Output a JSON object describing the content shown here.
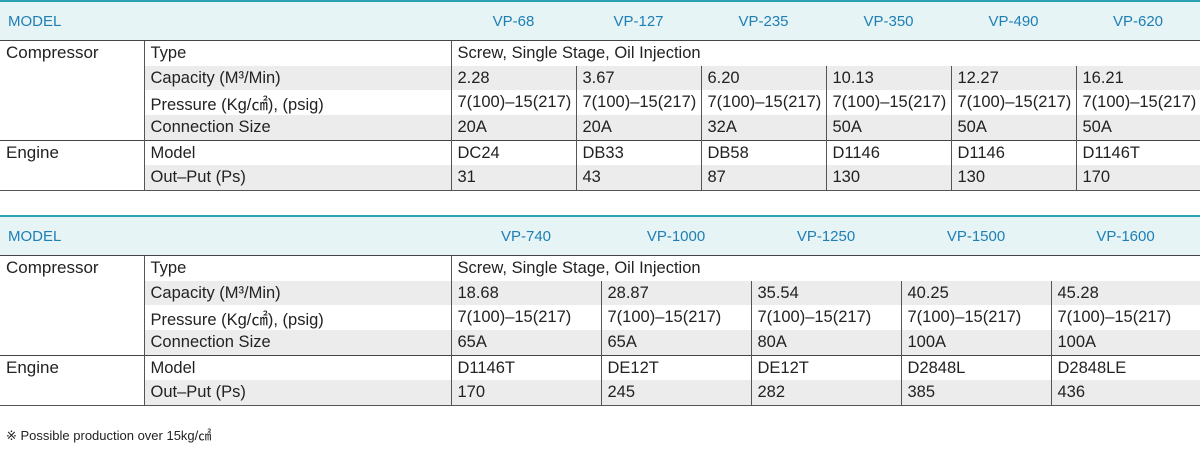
{
  "table1": {
    "model_label": "MODEL",
    "models": [
      "VP-68",
      "VP-127",
      "VP-235",
      "VP-350",
      "VP-490",
      "VP-620"
    ],
    "compressor_label": "Compressor",
    "engine_label": "Engine",
    "type_label": "Type",
    "type_value": "Screw, Single Stage, Oil Injection",
    "capacity_label": "Capacity (M³/Min)",
    "capacity": [
      "2.28",
      "3.67",
      "6.20",
      "10.13",
      "12.27",
      "16.21"
    ],
    "pressure_label": "Pressure (Kg/㎠), (psig)",
    "pressure": [
      "7(100)–15(217)",
      "7(100)–15(217)",
      "7(100)–15(217)",
      "7(100)–15(217)",
      "7(100)–15(217)",
      "7(100)–15(217)"
    ],
    "connection_label": "Connection Size",
    "connection": [
      "20A",
      "20A",
      "32A",
      "50A",
      "50A",
      "50A"
    ],
    "engine_model_label": "Model",
    "engine_model": [
      "DC24",
      "DB33",
      "DB58",
      "D1146",
      "D1146",
      "D1146T"
    ],
    "output_label": "Out–Put (Ps)",
    "output": [
      "31",
      "43",
      "87",
      "130",
      "130",
      "170"
    ]
  },
  "table2": {
    "model_label": "MODEL",
    "models": [
      "VP-740",
      "VP-1000",
      "VP-1250",
      "VP-1500",
      "VP-1600"
    ],
    "compressor_label": "Compressor",
    "engine_label": "Engine",
    "type_label": "Type",
    "type_value": "Screw, Single Stage, Oil Injection",
    "capacity_label": "Capacity (M³/Min)",
    "capacity": [
      "18.68",
      "28.87",
      "35.54",
      "40.25",
      "45.28"
    ],
    "pressure_label": "Pressure (Kg/㎠), (psig)",
    "pressure": [
      "7(100)–15(217)",
      "7(100)–15(217)",
      "7(100)–15(217)",
      "7(100)–15(217)",
      "7(100)–15(217)"
    ],
    "connection_label": "Connection Size",
    "connection": [
      "65A",
      "65A",
      "80A",
      "100A",
      "100A"
    ],
    "engine_model_label": "Model",
    "engine_model": [
      "D1146T",
      "DE12T",
      "DE12T",
      "D2848L",
      "D2848LE"
    ],
    "output_label": "Out–Put (Ps)",
    "output": [
      "170",
      "245",
      "282",
      "385",
      "436"
    ]
  },
  "footnote": "※  Possible production over 15kg/㎠"
}
